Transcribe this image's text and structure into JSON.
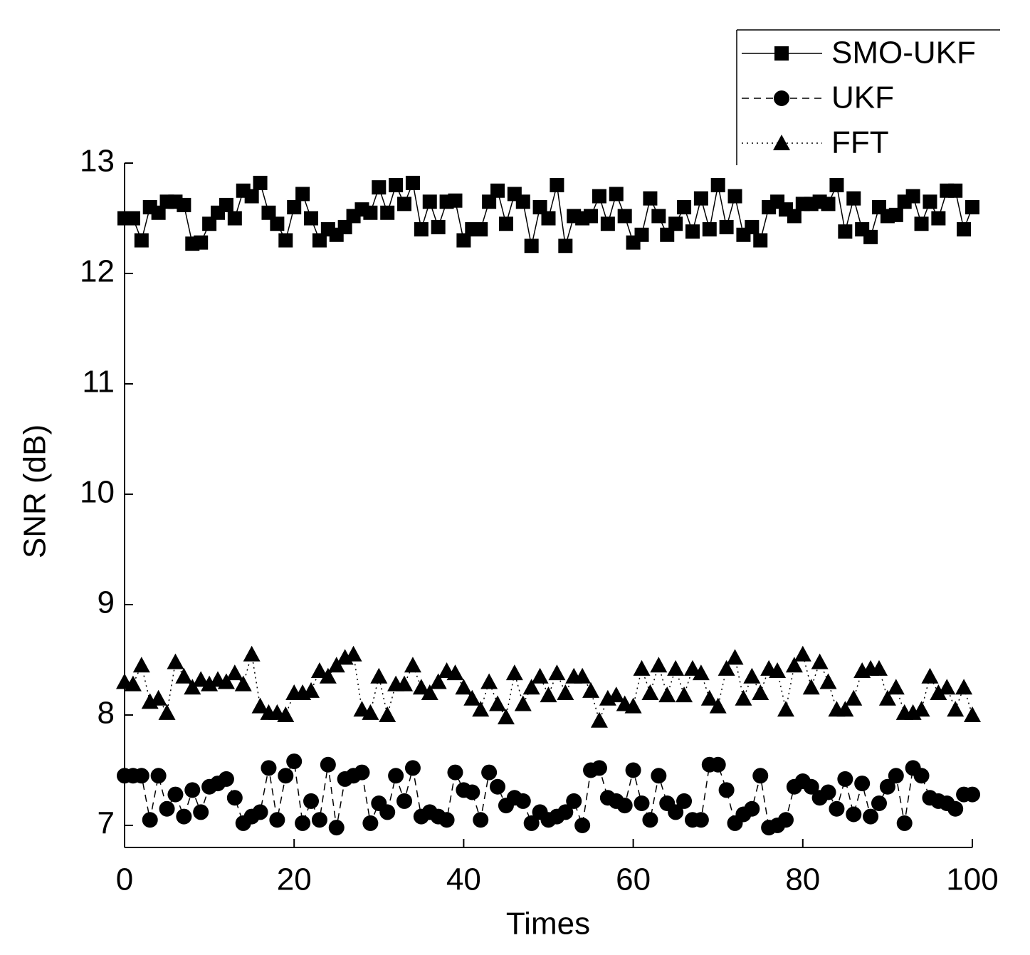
{
  "chart_data": {
    "type": "line",
    "x_label": "Times",
    "y_label": "SNR (dB)",
    "x": [
      0,
      1,
      2,
      3,
      4,
      5,
      6,
      7,
      8,
      9,
      10,
      11,
      12,
      13,
      14,
      15,
      16,
      17,
      18,
      19,
      20,
      21,
      22,
      23,
      24,
      25,
      26,
      27,
      28,
      29,
      30,
      31,
      32,
      33,
      34,
      35,
      36,
      37,
      38,
      39,
      40,
      41,
      42,
      43,
      44,
      45,
      46,
      47,
      48,
      49,
      50,
      51,
      52,
      53,
      54,
      55,
      56,
      57,
      58,
      59,
      60,
      61,
      62,
      63,
      64,
      65,
      66,
      67,
      68,
      69,
      70,
      71,
      72,
      73,
      74,
      75,
      76,
      77,
      78,
      79,
      80,
      81,
      82,
      83,
      84,
      85,
      86,
      87,
      88,
      89,
      90,
      91,
      92,
      93,
      94,
      95,
      96,
      97,
      98,
      99,
      100
    ],
    "series": [
      {
        "name": "SMO-UKF",
        "color": "#000000",
        "dash": "solid",
        "marker": "square",
        "values": [
          12.5,
          12.5,
          12.3,
          12.6,
          12.55,
          12.65,
          12.65,
          12.62,
          12.27,
          12.28,
          12.45,
          12.55,
          12.62,
          12.5,
          12.75,
          12.7,
          12.82,
          12.55,
          12.45,
          12.3,
          12.6,
          12.72,
          12.5,
          12.3,
          12.4,
          12.35,
          12.42,
          12.52,
          12.58,
          12.55,
          12.78,
          12.55,
          12.8,
          12.63,
          12.82,
          12.4,
          12.65,
          12.42,
          12.65,
          12.66,
          12.3,
          12.4,
          12.4,
          12.65,
          12.75,
          12.45,
          12.72,
          12.65,
          12.25,
          12.6,
          12.5,
          12.8,
          12.25,
          12.52,
          12.5,
          12.52,
          12.7,
          12.45,
          12.72,
          12.52,
          12.28,
          12.35,
          12.68,
          12.52,
          12.35,
          12.45,
          12.6,
          12.38,
          12.68,
          12.4,
          12.8,
          12.42,
          12.7,
          12.35,
          12.42,
          12.3,
          12.6,
          12.65,
          12.58,
          12.52,
          12.63,
          12.63,
          12.65,
          12.63,
          12.8,
          12.38,
          12.68,
          12.4,
          12.33,
          12.6,
          12.52,
          12.53,
          12.65,
          12.7,
          12.45,
          12.65,
          12.5,
          12.75,
          12.75,
          12.4,
          12.6
        ]
      },
      {
        "name": "UKF",
        "color": "#000000",
        "dash": "dashed",
        "marker": "circle",
        "values": [
          7.45,
          7.45,
          7.45,
          7.05,
          7.45,
          7.15,
          7.28,
          7.08,
          7.32,
          7.12,
          7.35,
          7.38,
          7.42,
          7.25,
          7.02,
          7.08,
          7.12,
          7.52,
          7.05,
          7.45,
          7.58,
          7.02,
          7.22,
          7.05,
          7.55,
          6.98,
          7.42,
          7.45,
          7.48,
          7.02,
          7.2,
          7.12,
          7.45,
          7.22,
          7.52,
          7.08,
          7.12,
          7.08,
          7.05,
          7.48,
          7.32,
          7.3,
          7.05,
          7.48,
          7.35,
          7.18,
          7.25,
          7.22,
          7.02,
          7.12,
          7.05,
          7.08,
          7.12,
          7.22,
          7.0,
          7.5,
          7.52,
          7.25,
          7.22,
          7.18,
          7.5,
          7.2,
          7.05,
          7.45,
          7.2,
          7.12,
          7.22,
          7.05,
          7.05,
          7.55,
          7.55,
          7.32,
          7.02,
          7.1,
          7.15,
          7.45,
          6.98,
          7.0,
          7.05,
          7.35,
          7.4,
          7.35,
          7.25,
          7.3,
          7.15,
          7.42,
          7.1,
          7.38,
          7.08,
          7.2,
          7.35,
          7.45,
          7.02,
          7.52,
          7.45,
          7.25,
          7.22,
          7.2,
          7.15,
          7.28,
          7.28
        ]
      },
      {
        "name": "FFT",
        "color": "#000000",
        "dash": "dotted",
        "marker": "triangle",
        "values": [
          8.3,
          8.28,
          8.45,
          8.12,
          8.15,
          8.02,
          8.48,
          8.35,
          8.25,
          8.32,
          8.28,
          8.32,
          8.3,
          8.38,
          8.28,
          8.55,
          8.08,
          8.02,
          8.02,
          8.0,
          8.2,
          8.2,
          8.22,
          8.4,
          8.35,
          8.45,
          8.52,
          8.55,
          8.05,
          8.02,
          8.35,
          8.0,
          8.28,
          8.28,
          8.45,
          8.25,
          8.2,
          8.3,
          8.4,
          8.38,
          8.25,
          8.15,
          8.05,
          8.3,
          8.1,
          7.98,
          8.38,
          8.1,
          8.25,
          8.35,
          8.18,
          8.38,
          8.2,
          8.35,
          8.35,
          8.22,
          7.95,
          8.15,
          8.18,
          8.1,
          8.08,
          8.42,
          8.2,
          8.45,
          8.18,
          8.42,
          8.18,
          8.42,
          8.38,
          8.15,
          8.08,
          8.42,
          8.52,
          8.15,
          8.35,
          8.2,
          8.42,
          8.4,
          8.05,
          8.45,
          8.55,
          8.25,
          8.48,
          8.3,
          8.05,
          8.05,
          8.15,
          8.4,
          8.42,
          8.42,
          8.15,
          8.25,
          8.02,
          8.02,
          8.05,
          8.35,
          8.2,
          8.25,
          8.05,
          8.25,
          8.0
        ]
      }
    ],
    "xlim": [
      0,
      100
    ],
    "xticks": [
      0,
      20,
      40,
      60,
      80,
      100
    ],
    "ylim": [
      6.8,
      13
    ],
    "yticks": [
      7,
      8,
      9,
      10,
      11,
      12,
      13
    ],
    "legend": "top-right",
    "grid": false
  }
}
